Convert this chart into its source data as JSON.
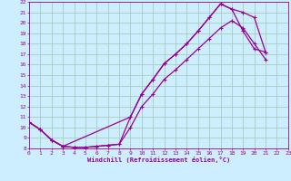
{
  "xlabel": "Windchill (Refroidissement éolien,°C)",
  "bg_color": "#cceeff",
  "grid_color": "#aaccbb",
  "line_color": "#990099",
  "xlim": [
    0,
    23
  ],
  "ylim": [
    8,
    22
  ],
  "xticks": [
    0,
    1,
    2,
    3,
    4,
    5,
    6,
    7,
    8,
    9,
    10,
    11,
    12,
    13,
    14,
    15,
    16,
    17,
    18,
    19,
    20,
    21,
    22,
    23
  ],
  "yticks": [
    8,
    9,
    10,
    11,
    12,
    13,
    14,
    15,
    16,
    17,
    18,
    19,
    20,
    21,
    22
  ],
  "curve1_x": [
    0,
    1,
    2,
    3,
    9,
    10,
    11,
    12,
    13,
    14,
    15,
    16,
    17,
    18,
    19,
    20,
    21
  ],
  "curve1_y": [
    10.5,
    9.8,
    8.8,
    8.2,
    11.0,
    13.2,
    14.6,
    16.1,
    17.0,
    18.0,
    19.2,
    20.5,
    21.8,
    21.3,
    21.0,
    20.5,
    17.2
  ],
  "curve2_x": [
    0,
    1,
    2,
    3,
    4,
    5,
    6,
    7,
    8,
    9,
    10,
    11,
    12,
    13,
    14,
    15,
    16,
    17,
    18,
    19,
    20,
    21
  ],
  "curve2_y": [
    10.5,
    9.8,
    8.8,
    8.2,
    8.1,
    8.1,
    8.2,
    8.3,
    8.4,
    11.0,
    13.2,
    14.6,
    16.1,
    17.0,
    18.0,
    19.2,
    20.5,
    21.8,
    21.3,
    19.2,
    17.5,
    17.2
  ],
  "curve3_x": [
    0,
    1,
    2,
    3,
    4,
    5,
    6,
    7,
    8,
    9,
    10,
    11,
    12,
    13,
    14,
    15,
    16,
    17,
    18,
    19,
    20,
    21
  ],
  "curve3_y": [
    10.5,
    9.8,
    8.8,
    8.2,
    8.1,
    8.1,
    8.2,
    8.3,
    8.4,
    10.0,
    12.0,
    13.2,
    14.6,
    15.5,
    16.5,
    17.5,
    18.5,
    19.5,
    20.2,
    19.5,
    18.0,
    16.5
  ]
}
